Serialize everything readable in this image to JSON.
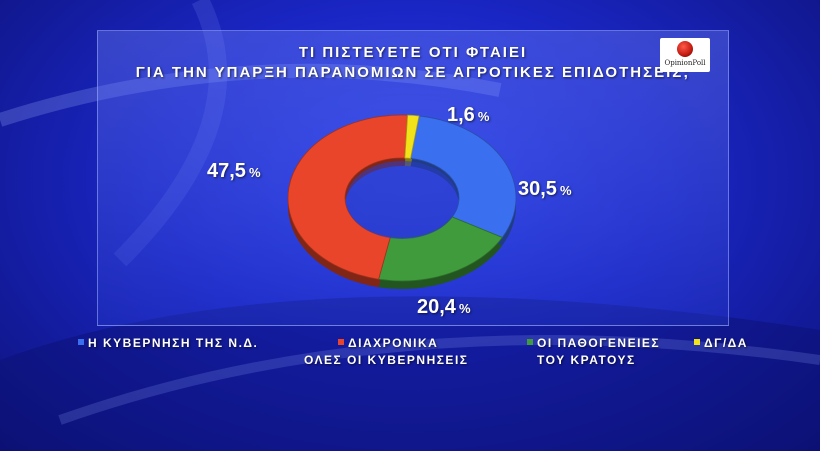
{
  "chart_data": {
    "type": "pie",
    "donut": true,
    "title_lines": [
      "ΤΙ ΠΙΣΤΕΥΕΤΕ ΟΤΙ ΦΤΑΙΕΙ",
      "ΓΙΑ ΤΗΝ ΥΠΑΡΞΗ ΠΑΡΑΝΟΜΙΩΝ ΣΕ ΑΓΡΟΤΙΚΕΣ ΕΠΙΔΟΤΗΣΕΙΣ;"
    ],
    "unit": "%",
    "slices": [
      {
        "label_lines": [
          "Η ΚΥΒΕΡΝΗΣΗ ΤΗΣ Ν.Δ."
        ],
        "value": 30.5,
        "value_label": "30,5",
        "color": "#3a6ff0"
      },
      {
        "label_lines": [
          "ΟΙ ΠΑΘΟΓΕΝΕΙΕΣ",
          "ΤΟΥ ΚΡΑΤΟΥΣ"
        ],
        "value": 20.4,
        "value_label": "20,4",
        "color": "#3f9b3c"
      },
      {
        "label_lines": [
          "ΔΙΑΧΡΟΝΙΚΑ",
          "ΟΛΕΣ ΟΙ ΚΥΒΕΡΝΗΣΕΙΣ"
        ],
        "value": 47.5,
        "value_label": "47,5",
        "color": "#e8452a"
      },
      {
        "label_lines": [
          "ΔΓ/ΔΑ"
        ],
        "value": 1.6,
        "value_label": "1,6",
        "color": "#f2e21a"
      }
    ]
  },
  "logo": {
    "text": "OpinionPoll"
  }
}
